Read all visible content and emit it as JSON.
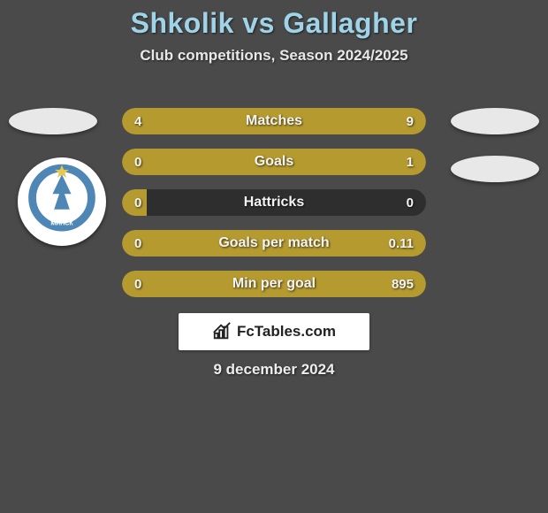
{
  "header": {
    "title": "Shkolik vs Gallagher",
    "subtitle": "Club competitions, Season 2024/2025",
    "title_color": "#9fd4e8"
  },
  "bars": {
    "bar_color": "#b49a2f",
    "track_color": "#2e2e2e",
    "text_color": "#f4f4f4",
    "items": [
      {
        "label": "Matches",
        "left": "4",
        "right": "9",
        "left_pct": 31,
        "right_pct": 69
      },
      {
        "label": "Goals",
        "left": "0",
        "right": "1",
        "left_pct": 8,
        "right_pct": 92
      },
      {
        "label": "Hattricks",
        "left": "0",
        "right": "0",
        "left_pct": 8,
        "right_pct": 0
      },
      {
        "label": "Goals per match",
        "left": "0",
        "right": "0.11",
        "left_pct": 100,
        "right_pct": 0,
        "full": true
      },
      {
        "label": "Min per goal",
        "left": "0",
        "right": "895",
        "left_pct": 100,
        "right_pct": 0,
        "full": true
      }
    ]
  },
  "footer": {
    "brand": "FcTables.com",
    "date": "9 december 2024"
  },
  "badge": {
    "ring_color": "#4e86b5",
    "ribbon_color": "#4e86b5",
    "star_color": "#e6c94a"
  }
}
